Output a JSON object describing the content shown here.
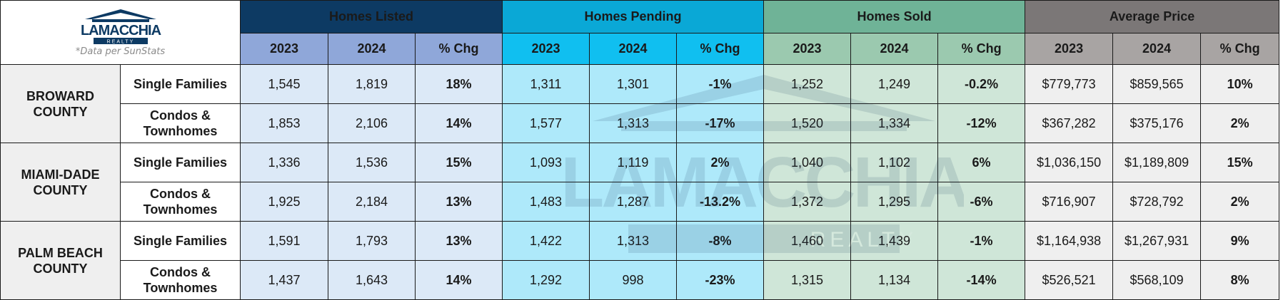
{
  "logo": {
    "brand": "LAMACCHIA",
    "sub": "REALTY"
  },
  "note": "*Data per SunStats",
  "groups": [
    "Homes Listed",
    "Homes Pending",
    "Homes Sold",
    "Average Price"
  ],
  "subheaders": [
    "2023",
    "2024",
    "% Chg"
  ],
  "rows": [
    {
      "county": "BROWARD COUNTY",
      "type": "Single Families",
      "values": [
        "1,545",
        "1,819",
        "18%",
        "1,311",
        "1,301",
        "-1%",
        "1,252",
        "1,249",
        "-0.2%",
        "$779,773",
        "$859,565",
        "10%"
      ]
    },
    {
      "county": "BROWARD COUNTY",
      "type": "Condos & Townhomes",
      "values": [
        "1,853",
        "2,106",
        "14%",
        "1,577",
        "1,313",
        "-17%",
        "1,520",
        "1,334",
        "-12%",
        "$367,282",
        "$375,176",
        "2%"
      ]
    },
    {
      "county": "MIAMI-DADE COUNTY",
      "type": "Single Families",
      "values": [
        "1,336",
        "1,536",
        "15%",
        "1,093",
        "1,119",
        "2%",
        "1,040",
        "1,102",
        "6%",
        "$1,036,150",
        "$1,189,809",
        "15%"
      ]
    },
    {
      "county": "MIAMI-DADE COUNTY",
      "type": "Condos & Townhomes",
      "values": [
        "1,925",
        "2,184",
        "13%",
        "1,483",
        "1,287",
        "-13.2%",
        "1,372",
        "1,295",
        "-6%",
        "$716,907",
        "$728,792",
        "2%"
      ]
    },
    {
      "county": "PALM BEACH COUNTY",
      "type": "Single Families",
      "values": [
        "1,591",
        "1,793",
        "13%",
        "1,422",
        "1,313",
        "-8%",
        "1,460",
        "1,439",
        "-1%",
        "$1,164,938",
        "$1,267,931",
        "9%"
      ]
    },
    {
      "county": "PALM BEACH COUNTY",
      "type": "Condos & Townhomes",
      "values": [
        "1,437",
        "1,643",
        "14%",
        "1,292",
        "998",
        "-23%",
        "1,315",
        "1,134",
        "-14%",
        "$526,521",
        "$568,109",
        "8%"
      ]
    }
  ],
  "counties": [
    {
      "line1": "BROWARD",
      "line2": "COUNTY"
    },
    {
      "line1": "MIAMI-DADE",
      "line2": "COUNTY"
    },
    {
      "line1": "PALM BEACH",
      "line2": "COUNTY"
    }
  ],
  "types": [
    {
      "line1": "Single Families",
      "line2": ""
    },
    {
      "line1": "Condos &",
      "line2": "Townhomes"
    }
  ],
  "colors": {
    "listed": "#0d3a63",
    "pending": "#0aa8d6",
    "sold": "#6fb397",
    "price": "#7b7777"
  }
}
